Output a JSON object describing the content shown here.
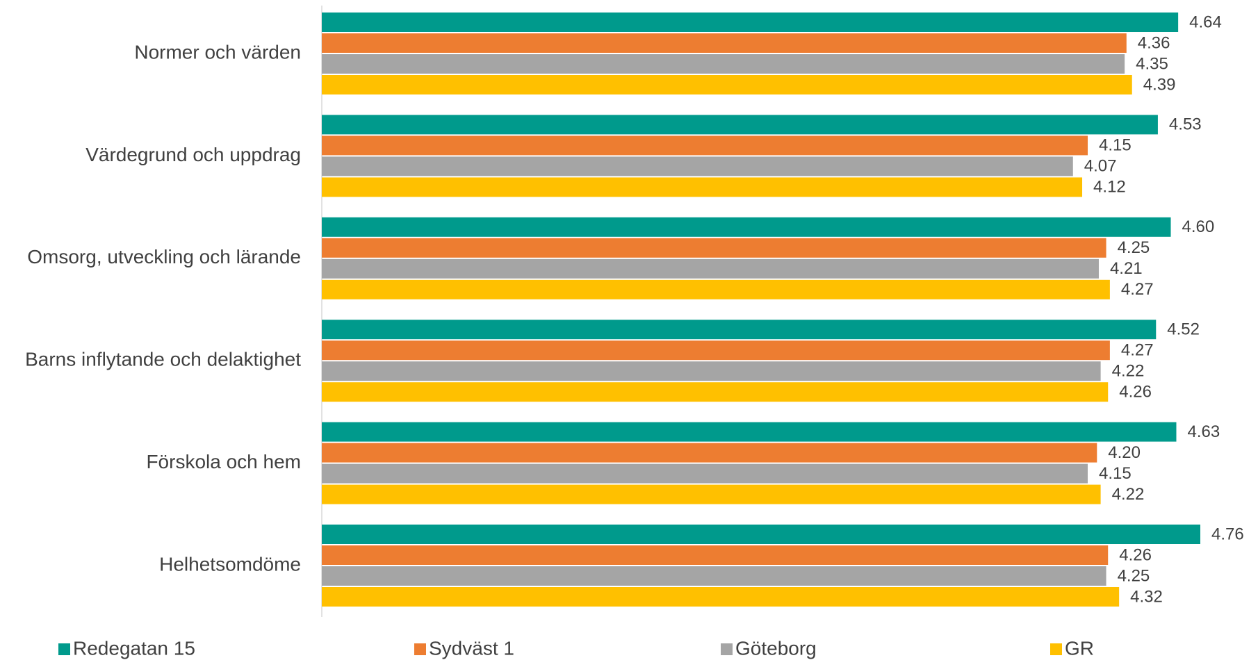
{
  "chart_data": {
    "type": "bar",
    "orientation": "horizontal",
    "categories": [
      "Normer och värden",
      "Värdegrund och uppdrag",
      "Omsorg, utveckling och lärande",
      "Barns inflytande och delaktighet",
      "Förskola och hem",
      "Helhetsomdöme"
    ],
    "series": [
      {
        "name": "Redegatan 15",
        "color": "#009A8C",
        "values": [
          4.64,
          4.53,
          4.6,
          4.52,
          4.63,
          4.76
        ],
        "labels": [
          "4.64",
          "4.53",
          "4.60",
          "4.52",
          "4.63",
          "4.76"
        ]
      },
      {
        "name": "Sydväst 1",
        "color": "#ED7D31",
        "values": [
          4.36,
          4.15,
          4.25,
          4.27,
          4.2,
          4.26
        ],
        "labels": [
          "4.36",
          "4.15",
          "4.25",
          "4.27",
          "4.20",
          "4.26"
        ]
      },
      {
        "name": "Göteborg",
        "color": "#A5A5A5",
        "values": [
          4.35,
          4.07,
          4.21,
          4.22,
          4.15,
          4.25
        ],
        "labels": [
          "4.35",
          "4.07",
          "4.21",
          "4.22",
          "4.15",
          "4.25"
        ]
      },
      {
        "name": "GR",
        "color": "#FFC000",
        "values": [
          4.39,
          4.12,
          4.27,
          4.26,
          4.22,
          4.32
        ],
        "labels": [
          "4.39",
          "4.12",
          "4.27",
          "4.26",
          "4.22",
          "4.32"
        ]
      }
    ],
    "xlim": [
      0,
      4.76
    ],
    "grid": false,
    "legend_position": "bottom",
    "title": "",
    "xlabel": "",
    "ylabel": ""
  }
}
